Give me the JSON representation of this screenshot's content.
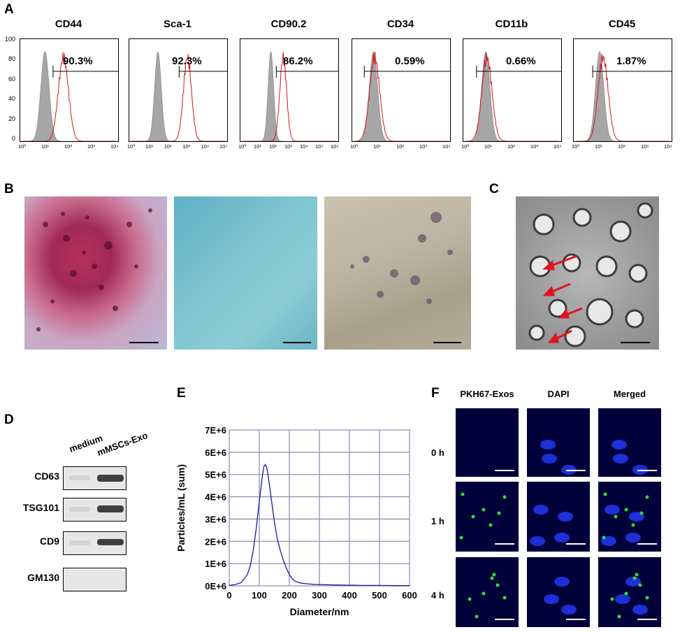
{
  "panels": {
    "A": "A",
    "B": "B",
    "C": "C",
    "D": "D",
    "E": "E",
    "F": "F"
  },
  "histograms": [
    {
      "marker": "CD44",
      "percent": "90.3%",
      "xticks": [
        "10⁰",
        "10¹",
        "10²",
        "10³",
        "10⁴"
      ],
      "gray_peak_log": 0.95,
      "red_peak_log": 1.75
    },
    {
      "marker": "Sca-1",
      "percent": "92.3%",
      "xticks": [
        "10⁰",
        "10¹",
        "10²",
        "10³",
        "10⁴",
        "10⁵"
      ],
      "gray_peak_log": 1.4,
      "red_peak_log": 3.0
    },
    {
      "marker": "CD90.2",
      "percent": "86.2%",
      "xticks": [
        "10⁰",
        "10¹",
        "10²",
        "10³",
        "10⁴",
        "10⁵",
        "10⁶"
      ],
      "gray_peak_log": 1.8,
      "red_peak_log": 2.6
    },
    {
      "marker": "CD34",
      "percent": "0.59%",
      "xticks": [
        "10⁰",
        "10¹",
        "10²",
        "10³",
        "10⁴"
      ],
      "gray_peak_log": 0.8,
      "red_peak_log": 0.85
    },
    {
      "marker": "CD11b",
      "percent": "0.66%",
      "xticks": [
        "10⁰",
        "10¹",
        "10²",
        "10³",
        "10⁴"
      ],
      "gray_peak_log": 0.85,
      "red_peak_log": 0.9
    },
    {
      "marker": "CD45",
      "percent": "1.87%",
      "xticks": [
        "10⁰",
        "10¹",
        "10²",
        "10³",
        "10⁴"
      ],
      "gray_peak_log": 1.0,
      "red_peak_log": 1.15
    }
  ],
  "hist_yticks": [
    "100",
    "80",
    "60",
    "40",
    "20",
    "0"
  ],
  "western_blot": {
    "columns": [
      "medium",
      "mMSCs-Exo"
    ],
    "rows": [
      "CD63",
      "TSG101",
      "CD9",
      "GM130"
    ]
  },
  "chart_data": {
    "type": "line",
    "title": "",
    "xlabel": "Diameter/nm",
    "ylabel": "Particles/mL (sum)",
    "xlim": [
      0,
      600
    ],
    "ylim": [
      0,
      7000000
    ],
    "x_ticks": [
      "0",
      "100",
      "200",
      "300",
      "400",
      "500",
      "600"
    ],
    "y_ticks": [
      "0E+6",
      "1E+6",
      "2E+6",
      "3E+6",
      "4E+6",
      "5E+6",
      "6E+6",
      "7E+6"
    ],
    "grid": true,
    "series": [
      {
        "x": [
          0,
          20,
          40,
          60,
          70,
          80,
          90,
          100,
          110,
          115,
          120,
          125,
          130,
          140,
          150,
          160,
          170,
          180,
          190,
          200,
          210,
          220,
          240,
          260,
          280,
          300,
          350,
          400,
          450,
          500,
          550,
          600
        ],
        "y": [
          20000,
          60000,
          150000,
          500000,
          900000,
          1600000,
          2600000,
          3800000,
          4900000,
          5350000,
          5450000,
          5300000,
          4900000,
          3900000,
          2900000,
          2100000,
          1600000,
          1150000,
          800000,
          500000,
          320000,
          200000,
          120000,
          90000,
          70000,
          60000,
          40000,
          30000,
          20000,
          20000,
          10000,
          10000
        ]
      }
    ],
    "color": "#1a1aa6"
  },
  "fluorescence": {
    "headers": [
      "PKH67-Exos",
      "DAPI",
      "Merged"
    ],
    "times": [
      "0 h",
      "1 h",
      "4 h"
    ]
  },
  "colors": {
    "gray_fill": "#a6a6a6",
    "red_line": "#d9141c",
    "arrow": "#e0141c"
  }
}
